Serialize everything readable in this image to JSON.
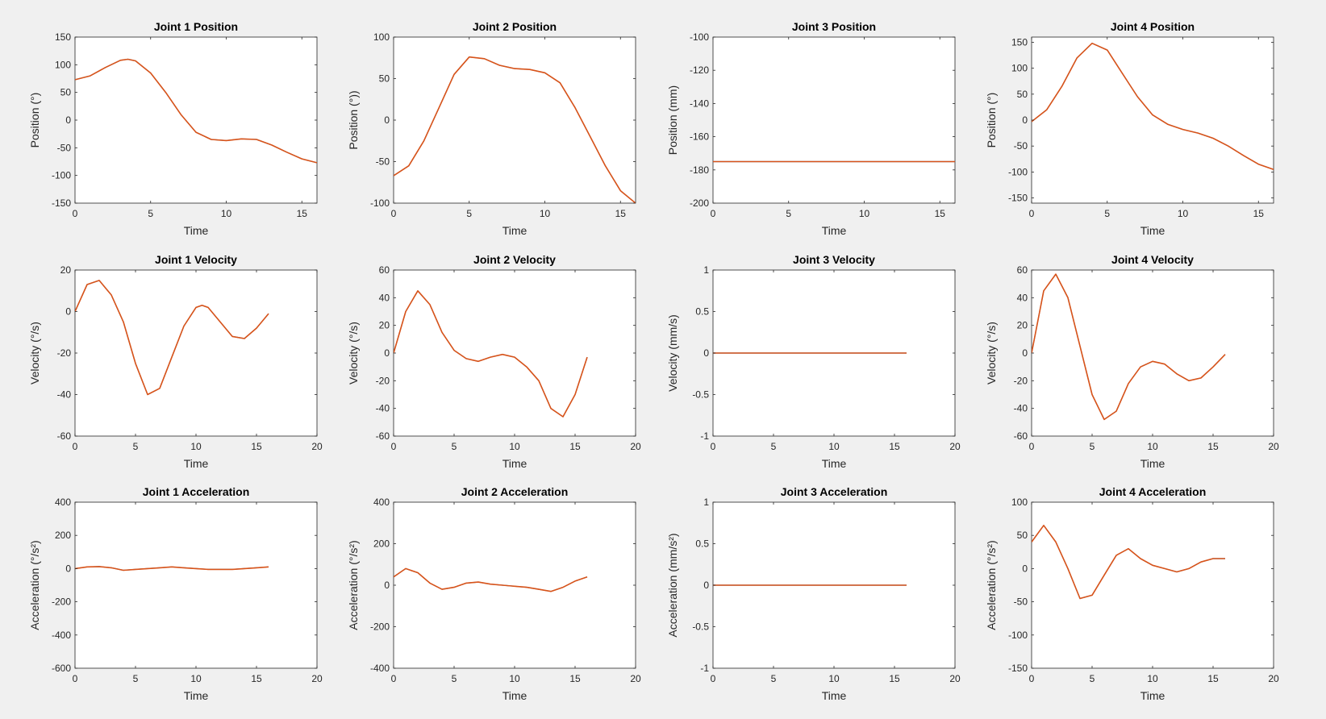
{
  "figure": {
    "background": "#f0f0f0",
    "axes_color": "#262626",
    "series_colors": [
      "#0072bd",
      "#d95319"
    ]
  },
  "chart_data": [
    {
      "id": "j1-pos",
      "type": "line",
      "title": "Joint 1 Position",
      "xlabel": "Time",
      "ylabel": "Position (°)",
      "xlim": [
        0,
        16
      ],
      "ylim": [
        -150,
        150
      ],
      "xticks": [
        "0",
        "5",
        "10",
        "15"
      ],
      "yticks": [
        "-150",
        "-100",
        "-50",
        "0",
        "50",
        "100",
        "150"
      ],
      "x": [
        0,
        1,
        2,
        3,
        3.5,
        4,
        5,
        6,
        7,
        8,
        9,
        10,
        11,
        12,
        13,
        14,
        15,
        16
      ],
      "series": [
        {
          "color": "#0072bd",
          "values": [
            73,
            80,
            95,
            108,
            110,
            107,
            85,
            50,
            10,
            -22,
            -35,
            -37,
            -34,
            -35,
            -45,
            -58,
            -70,
            -77
          ]
        },
        {
          "color": "#d95319",
          "values": [
            73,
            80,
            95,
            108,
            110,
            107,
            85,
            50,
            10,
            -22,
            -35,
            -37,
            -34,
            -35,
            -45,
            -58,
            -70,
            -77
          ]
        }
      ]
    },
    {
      "id": "j2-pos",
      "type": "line",
      "title": "Joint 2 Position",
      "xlabel": "Time",
      "ylabel": "Position (°))",
      "xlim": [
        0,
        16
      ],
      "ylim": [
        -100,
        100
      ],
      "xticks": [
        "0",
        "5",
        "10",
        "15"
      ],
      "yticks": [
        "-100",
        "-50",
        "0",
        "50",
        "100"
      ],
      "x": [
        0,
        1,
        2,
        3,
        4,
        5,
        6,
        7,
        8,
        9,
        10,
        11,
        12,
        13,
        14,
        15,
        16
      ],
      "series": [
        {
          "color": "#0072bd",
          "values": [
            -67,
            -55,
            -25,
            15,
            55,
            76,
            74,
            66,
            62,
            61,
            57,
            45,
            15,
            -20,
            -55,
            -85,
            -100
          ]
        },
        {
          "color": "#d95319",
          "values": [
            -67,
            -55,
            -25,
            15,
            55,
            76,
            74,
            66,
            62,
            61,
            57,
            45,
            15,
            -20,
            -55,
            -85,
            -100
          ]
        }
      ]
    },
    {
      "id": "j3-pos",
      "type": "line",
      "title": "Joint 3 Position",
      "xlabel": "Time",
      "ylabel": "Position (mm)",
      "xlim": [
        0,
        16
      ],
      "ylim": [
        -200,
        -100
      ],
      "xticks": [
        "0",
        "5",
        "10",
        "15"
      ],
      "yticks": [
        "-200",
        "-180",
        "-160",
        "-140",
        "-120",
        "-100"
      ],
      "x": [
        0,
        16
      ],
      "series": [
        {
          "color": "#0072bd",
          "values": [
            -175,
            -175
          ]
        },
        {
          "color": "#d95319",
          "values": [
            -175,
            -175
          ]
        }
      ]
    },
    {
      "id": "j4-pos",
      "type": "line",
      "title": "Joint 4 Position",
      "xlabel": "Time",
      "ylabel": "Position (°)",
      "xlim": [
        0,
        16
      ],
      "ylim": [
        -160,
        160
      ],
      "xticks": [
        "0",
        "5",
        "10",
        "15"
      ],
      "yticks": [
        "-150",
        "-100",
        "-50",
        "0",
        "50",
        "100",
        "150"
      ],
      "x": [
        0,
        1,
        2,
        3,
        4,
        5,
        6,
        7,
        8,
        9,
        10,
        11,
        12,
        13,
        14,
        15,
        16
      ],
      "series": [
        {
          "color": "#0072bd",
          "values": [
            -3,
            20,
            65,
            120,
            148,
            135,
            90,
            45,
            10,
            -8,
            -18,
            -25,
            -35,
            -50,
            -68,
            -85,
            -95
          ]
        },
        {
          "color": "#d95319",
          "values": [
            -3,
            20,
            65,
            120,
            148,
            135,
            90,
            45,
            10,
            -8,
            -18,
            -25,
            -35,
            -50,
            -68,
            -85,
            -95
          ]
        }
      ]
    },
    {
      "id": "j1-vel",
      "type": "line",
      "title": "Joint 1 Velocity",
      "xlabel": "Time",
      "ylabel": "Velocity (°/s)",
      "xlim": [
        0,
        20
      ],
      "ylim": [
        -60,
        20
      ],
      "xticks": [
        "0",
        "5",
        "10",
        "15",
        "20"
      ],
      "yticks": [
        "-60",
        "-40",
        "-20",
        "0",
        "20"
      ],
      "x": [
        0,
        1,
        2,
        3,
        4,
        5,
        6,
        7,
        8,
        9,
        10,
        10.5,
        11,
        12,
        13,
        14,
        15,
        16
      ],
      "series": [
        {
          "color": "#0072bd",
          "values": [
            0,
            13,
            15,
            8,
            -5,
            -25,
            -40,
            -37,
            -22,
            -7,
            2,
            3,
            2,
            -5,
            -12,
            -13,
            -8,
            -1
          ]
        },
        {
          "color": "#d95319",
          "values": [
            0,
            13,
            15,
            8,
            -5,
            -25,
            -40,
            -37,
            -22,
            -7,
            2,
            3,
            2,
            -5,
            -12,
            -13,
            -8,
            -1
          ]
        }
      ]
    },
    {
      "id": "j2-vel",
      "type": "line",
      "title": "Joint 2 Velocity",
      "xlabel": "Time",
      "ylabel": "Velocity (°/s)",
      "xlim": [
        0,
        20
      ],
      "ylim": [
        -60,
        60
      ],
      "xticks": [
        "0",
        "5",
        "10",
        "15",
        "20"
      ],
      "yticks": [
        "-60",
        "-40",
        "-20",
        "0",
        "20",
        "40",
        "60"
      ],
      "x": [
        0,
        1,
        2,
        3,
        4,
        5,
        6,
        7,
        8,
        9,
        10,
        11,
        12,
        13,
        14,
        15,
        16
      ],
      "series": [
        {
          "color": "#0072bd",
          "values": [
            0,
            30,
            45,
            35,
            15,
            2,
            -4,
            -6,
            -3,
            -1,
            -3,
            -10,
            -20,
            -40,
            -46,
            -30,
            -3
          ]
        },
        {
          "color": "#d95319",
          "values": [
            0,
            30,
            45,
            35,
            15,
            2,
            -4,
            -6,
            -3,
            -1,
            -3,
            -10,
            -20,
            -40,
            -46,
            -30,
            -3
          ]
        }
      ]
    },
    {
      "id": "j3-vel",
      "type": "line",
      "title": "Joint 3 Velocity",
      "xlabel": "Time",
      "ylabel": "Velocity (mm/s)",
      "xlim": [
        0,
        20
      ],
      "ylim": [
        -1,
        1
      ],
      "xticks": [
        "0",
        "5",
        "10",
        "15",
        "20"
      ],
      "yticks": [
        "-1",
        "-0.5",
        "0",
        "0.5",
        "1"
      ],
      "x": [
        0,
        16
      ],
      "series": [
        {
          "color": "#0072bd",
          "values": [
            0,
            0
          ]
        },
        {
          "color": "#d95319",
          "values": [
            0,
            0
          ]
        }
      ]
    },
    {
      "id": "j4-vel",
      "type": "line",
      "title": "Joint 4 Velocity",
      "xlabel": "Time",
      "ylabel": "Velocity (°/s)",
      "xlim": [
        0,
        20
      ],
      "ylim": [
        -60,
        60
      ],
      "xticks": [
        "0",
        "5",
        "10",
        "15",
        "20"
      ],
      "yticks": [
        "-60",
        "-40",
        "-20",
        "0",
        "20",
        "40",
        "60"
      ],
      "x": [
        0,
        1,
        2,
        3,
        4,
        5,
        6,
        7,
        8,
        9,
        10,
        11,
        12,
        13,
        14,
        15,
        16
      ],
      "series": [
        {
          "color": "#0072bd",
          "values": [
            0,
            45,
            57,
            40,
            5,
            -30,
            -48,
            -42,
            -22,
            -10,
            -6,
            -8,
            -15,
            -20,
            -18,
            -10,
            -1
          ]
        },
        {
          "color": "#d95319",
          "values": [
            0,
            45,
            57,
            40,
            5,
            -30,
            -48,
            -42,
            -22,
            -10,
            -6,
            -8,
            -15,
            -20,
            -18,
            -10,
            -1
          ]
        }
      ]
    },
    {
      "id": "j1-acc",
      "type": "line",
      "title": "Joint 1 Acceleration",
      "xlabel": "Time",
      "ylabel": "Acceleration (°/s²)",
      "xlim": [
        0,
        20
      ],
      "ylim": [
        -600,
        400
      ],
      "xticks": [
        "0",
        "5",
        "10",
        "15",
        "20"
      ],
      "yticks": [
        "-600",
        "-400",
        "-200",
        "0",
        "200",
        "400"
      ],
      "x": [
        0,
        1,
        2,
        3,
        4,
        5,
        6,
        7,
        8,
        9,
        10,
        11,
        12,
        13,
        14,
        15,
        16
      ],
      "series": [
        {
          "color": "#0072bd",
          "values": [
            0,
            10,
            12,
            5,
            -10,
            -5,
            0,
            5,
            10,
            5,
            0,
            -5,
            -5,
            -5,
            0,
            5,
            10
          ]
        },
        {
          "color": "#d95319",
          "values": [
            0,
            10,
            12,
            5,
            -10,
            -5,
            0,
            5,
            10,
            5,
            0,
            -5,
            -5,
            -5,
            0,
            5,
            10
          ]
        }
      ]
    },
    {
      "id": "j2-acc",
      "type": "line",
      "title": "Joint 2 Acceleration",
      "xlabel": "Time",
      "ylabel": "Acceleration (°/s²)",
      "xlim": [
        0,
        20
      ],
      "ylim": [
        -400,
        400
      ],
      "xticks": [
        "0",
        "5",
        "10",
        "15",
        "20"
      ],
      "yticks": [
        "-400",
        "-200",
        "0",
        "200",
        "400"
      ],
      "x": [
        0,
        1,
        2,
        3,
        4,
        5,
        6,
        7,
        8,
        9,
        10,
        11,
        12,
        13,
        14,
        15,
        16
      ],
      "series": [
        {
          "color": "#0072bd",
          "values": [
            40,
            80,
            60,
            10,
            -20,
            -10,
            10,
            15,
            5,
            0,
            -5,
            -10,
            -20,
            -30,
            -10,
            20,
            40
          ]
        },
        {
          "color": "#d95319",
          "values": [
            40,
            80,
            60,
            10,
            -20,
            -10,
            10,
            15,
            5,
            0,
            -5,
            -10,
            -20,
            -30,
            -10,
            20,
            40
          ]
        }
      ]
    },
    {
      "id": "j3-acc",
      "type": "line",
      "title": "Joint 3 Acceleration",
      "xlabel": "Time",
      "ylabel": "Acceleration (mm/s²)",
      "xlim": [
        0,
        20
      ],
      "ylim": [
        -1,
        1
      ],
      "xticks": [
        "0",
        "5",
        "10",
        "15",
        "20"
      ],
      "yticks": [
        "-1",
        "-0.5",
        "0",
        "0.5",
        "1"
      ],
      "x": [
        0,
        16
      ],
      "series": [
        {
          "color": "#0072bd",
          "values": [
            0,
            0
          ]
        },
        {
          "color": "#d95319",
          "values": [
            0,
            0
          ]
        }
      ]
    },
    {
      "id": "j4-acc",
      "type": "line",
      "title": "Joint 4 Acceleration",
      "xlabel": "Time",
      "ylabel": "Acceleration (°/s²)",
      "xlim": [
        0,
        20
      ],
      "ylim": [
        -150,
        100
      ],
      "xticks": [
        "0",
        "5",
        "10",
        "15",
        "20"
      ],
      "yticks": [
        "-150",
        "-100",
        "-50",
        "0",
        "50",
        "100"
      ],
      "x": [
        0,
        1,
        2,
        3,
        4,
        5,
        6,
        7,
        8,
        9,
        10,
        11,
        12,
        13,
        14,
        15,
        16
      ],
      "series": [
        {
          "color": "#0072bd",
          "values": [
            40,
            65,
            40,
            0,
            -45,
            -40,
            -10,
            20,
            30,
            15,
            5,
            0,
            -5,
            0,
            10,
            15,
            15
          ]
        },
        {
          "color": "#d95319",
          "values": [
            40,
            65,
            40,
            0,
            -45,
            -40,
            -10,
            20,
            30,
            15,
            5,
            0,
            -5,
            0,
            10,
            15,
            15
          ]
        }
      ]
    }
  ]
}
